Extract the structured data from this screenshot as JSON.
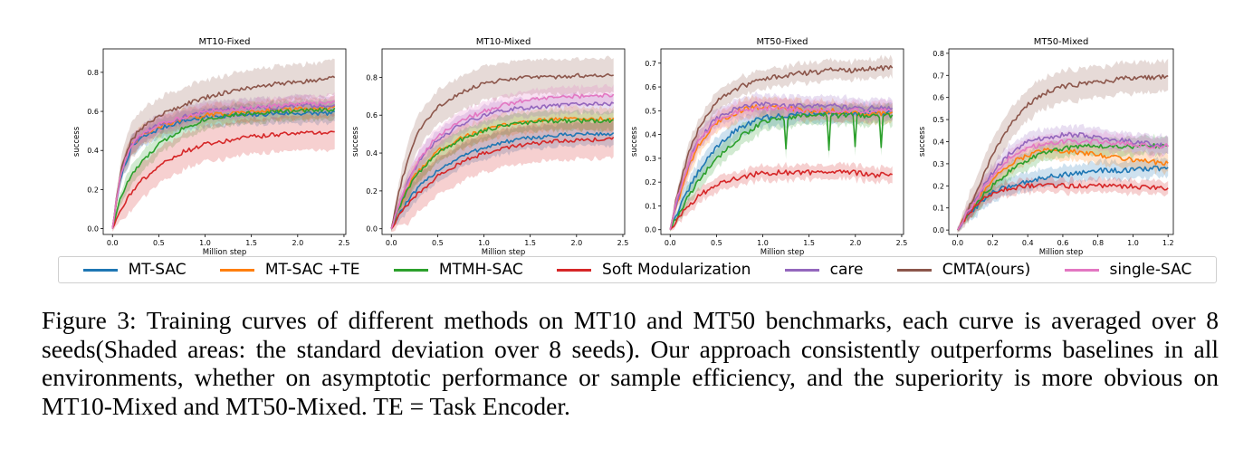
{
  "figure": {
    "caption_label": "Figure 3:",
    "caption_text": "Training curves of different methods on MT10 and MT50 benchmarks, each curve is averaged over 8 seeds(Shaded areas: the standard deviation over 8 seeds). Our approach consistently outperforms baselines in all environments, whether on asymptotic performance or sample efficiency, and the superiority is more obvious on MT10-Mixed and MT50-Mixed. TE = Task Encoder."
  },
  "legend": [
    {
      "name": "MT-SAC",
      "color": "#1f77b4"
    },
    {
      "name": "MT-SAC +TE",
      "color": "#ff7f0e"
    },
    {
      "name": "MTMH-SAC",
      "color": "#2ca02c"
    },
    {
      "name": "Soft Modularization",
      "color": "#d62728"
    },
    {
      "name": "care",
      "color": "#9467bd"
    },
    {
      "name": "CMTA(ours)",
      "color": "#8c564b"
    },
    {
      "name": "single-SAC",
      "color": "#e377c2"
    }
  ],
  "chart_data": [
    {
      "type": "line",
      "title": "MT10-Fixed",
      "xlabel": "Million step",
      "ylabel": "success",
      "xlim": [
        -0.1,
        2.52
      ],
      "ylim": [
        -0.03,
        0.92
      ],
      "xticks": [
        "0.0",
        "0.5",
        "1.0",
        "1.5",
        "2.0",
        "2.5"
      ],
      "yticks": [
        "0.0",
        "0.2",
        "0.4",
        "0.6",
        "0.8"
      ],
      "grid": false,
      "x": [
        0.0,
        0.05,
        0.1,
        0.2,
        0.3,
        0.5,
        0.75,
        1.0,
        1.25,
        1.5,
        1.75,
        2.0,
        2.2,
        2.4
      ],
      "series": [
        {
          "name": "MT-SAC",
          "values": [
            0.0,
            0.15,
            0.28,
            0.41,
            0.46,
            0.51,
            0.55,
            0.57,
            0.58,
            0.58,
            0.59,
            0.59,
            0.59,
            0.59
          ],
          "std": 0.05
        },
        {
          "name": "MT-SAC +TE",
          "values": [
            0.0,
            0.17,
            0.3,
            0.42,
            0.47,
            0.52,
            0.56,
            0.58,
            0.59,
            0.6,
            0.61,
            0.61,
            0.61,
            0.62
          ],
          "std": 0.05
        },
        {
          "name": "MTMH-SAC",
          "values": [
            0.0,
            0.1,
            0.17,
            0.27,
            0.33,
            0.43,
            0.51,
            0.56,
            0.58,
            0.59,
            0.6,
            0.6,
            0.61,
            0.61
          ],
          "std": 0.05
        },
        {
          "name": "Soft Modularization",
          "values": [
            0.0,
            0.06,
            0.11,
            0.18,
            0.24,
            0.32,
            0.39,
            0.43,
            0.45,
            0.47,
            0.48,
            0.49,
            0.49,
            0.49
          ],
          "std": 0.09
        },
        {
          "name": "care",
          "values": [
            0.0,
            0.17,
            0.3,
            0.42,
            0.48,
            0.53,
            0.57,
            0.6,
            0.61,
            0.62,
            0.62,
            0.63,
            0.63,
            0.63
          ],
          "std": 0.05
        },
        {
          "name": "CMTA(ours)",
          "values": [
            0.0,
            0.18,
            0.32,
            0.45,
            0.51,
            0.58,
            0.63,
            0.67,
            0.7,
            0.72,
            0.74,
            0.75,
            0.76,
            0.77
          ],
          "std": 0.09
        },
        {
          "name": "single-SAC",
          "values": [
            0.0,
            0.17,
            0.3,
            0.42,
            0.48,
            0.53,
            0.57,
            0.6,
            0.61,
            0.62,
            0.63,
            0.64,
            0.64,
            0.65
          ],
          "std": 0.04
        }
      ]
    },
    {
      "type": "line",
      "title": "MT10-Mixed",
      "xlabel": "Million step",
      "ylabel": "success",
      "xlim": [
        -0.1,
        2.52
      ],
      "ylim": [
        -0.03,
        0.95
      ],
      "xticks": [
        "0.0",
        "0.5",
        "1.0",
        "1.5",
        "2.0",
        "2.5"
      ],
      "yticks": [
        "0.0",
        "0.2",
        "0.4",
        "0.6",
        "0.8"
      ],
      "grid": false,
      "x": [
        0.0,
        0.05,
        0.1,
        0.2,
        0.3,
        0.5,
        0.75,
        1.0,
        1.25,
        1.5,
        1.75,
        2.0,
        2.2,
        2.4
      ],
      "series": [
        {
          "name": "MT-SAC",
          "values": [
            0.0,
            0.05,
            0.09,
            0.16,
            0.22,
            0.31,
            0.38,
            0.43,
            0.46,
            0.48,
            0.49,
            0.5,
            0.5,
            0.5
          ],
          "std": 0.06
        },
        {
          "name": "MT-SAC +TE",
          "values": [
            0.0,
            0.07,
            0.13,
            0.24,
            0.31,
            0.41,
            0.48,
            0.52,
            0.55,
            0.57,
            0.58,
            0.58,
            0.58,
            0.58
          ],
          "std": 0.06
        },
        {
          "name": "MTMH-SAC",
          "values": [
            0.0,
            0.07,
            0.13,
            0.23,
            0.3,
            0.4,
            0.47,
            0.52,
            0.55,
            0.56,
            0.57,
            0.57,
            0.57,
            0.57
          ],
          "std": 0.05
        },
        {
          "name": "Soft Modularization",
          "values": [
            0.0,
            0.04,
            0.08,
            0.14,
            0.19,
            0.28,
            0.35,
            0.4,
            0.43,
            0.45,
            0.46,
            0.47,
            0.47,
            0.48
          ],
          "std": 0.1
        },
        {
          "name": "care",
          "values": [
            0.0,
            0.08,
            0.15,
            0.27,
            0.36,
            0.47,
            0.55,
            0.6,
            0.63,
            0.64,
            0.65,
            0.66,
            0.66,
            0.66
          ],
          "std": 0.05
        },
        {
          "name": "CMTA(ours)",
          "values": [
            0.0,
            0.12,
            0.23,
            0.4,
            0.52,
            0.64,
            0.72,
            0.77,
            0.79,
            0.8,
            0.8,
            0.81,
            0.81,
            0.81
          ],
          "std": 0.09
        },
        {
          "name": "single-SAC",
          "values": [
            0.0,
            0.08,
            0.15,
            0.27,
            0.37,
            0.49,
            0.57,
            0.62,
            0.66,
            0.68,
            0.69,
            0.7,
            0.7,
            0.71
          ],
          "std": 0.05
        }
      ]
    },
    {
      "type": "line",
      "title": "MT50-Fixed",
      "xlabel": "Million step",
      "ylabel": "success",
      "xlim": [
        -0.1,
        2.52
      ],
      "ylim": [
        -0.02,
        0.76
      ],
      "xticks": [
        "0.0",
        "0.5",
        "1.0",
        "1.5",
        "2.0",
        "2.5"
      ],
      "yticks": [
        "0.0",
        "0.1",
        "0.2",
        "0.3",
        "0.4",
        "0.5",
        "0.6",
        "0.7"
      ],
      "grid": false,
      "x": [
        0.0,
        0.05,
        0.1,
        0.2,
        0.3,
        0.5,
        0.75,
        1.0,
        1.25,
        1.5,
        1.75,
        2.0,
        2.2,
        2.4
      ],
      "series": [
        {
          "name": "MT-SAC",
          "values": [
            0.0,
            0.05,
            0.09,
            0.17,
            0.24,
            0.35,
            0.43,
            0.47,
            0.48,
            0.49,
            0.49,
            0.49,
            0.49,
            0.49
          ],
          "std": 0.04
        },
        {
          "name": "MT-SAC +TE",
          "values": [
            0.0,
            0.08,
            0.14,
            0.26,
            0.35,
            0.45,
            0.5,
            0.52,
            0.51,
            0.5,
            0.5,
            0.49,
            0.49,
            0.49
          ],
          "std": 0.04
        },
        {
          "name": "MTMH-SAC",
          "values": [
            0.0,
            0.04,
            0.07,
            0.14,
            0.2,
            0.3,
            0.39,
            0.45,
            0.47,
            0.48,
            0.48,
            0.48,
            0.48,
            0.48
          ],
          "std": 0.04
        },
        {
          "name": "Soft Modularization",
          "values": [
            0.0,
            0.03,
            0.06,
            0.1,
            0.14,
            0.19,
            0.22,
            0.24,
            0.24,
            0.24,
            0.24,
            0.24,
            0.23,
            0.23
          ],
          "std": 0.03
        },
        {
          "name": "care",
          "values": [
            0.0,
            0.09,
            0.16,
            0.28,
            0.37,
            0.47,
            0.52,
            0.53,
            0.52,
            0.52,
            0.52,
            0.51,
            0.51,
            0.51
          ],
          "std": 0.04
        },
        {
          "name": "CMTA(ours)",
          "values": [
            0.0,
            0.1,
            0.18,
            0.32,
            0.42,
            0.54,
            0.6,
            0.63,
            0.65,
            0.66,
            0.67,
            0.67,
            0.68,
            0.68
          ],
          "std": 0.04
        },
        {
          "name": "single-SAC",
          "values": [
            0.0,
            0.09,
            0.16,
            0.28,
            0.37,
            0.46,
            0.5,
            0.51,
            0.51,
            0.5,
            0.5,
            0.5,
            0.5,
            0.5
          ],
          "std": 0.04
        }
      ]
    },
    {
      "type": "line",
      "title": "MT50-Mixed",
      "xlabel": "Million step",
      "ylabel": "success",
      "xlim": [
        -0.05,
        1.23
      ],
      "ylim": [
        -0.02,
        0.82
      ],
      "xticks": [
        "0.0",
        "0.2",
        "0.4",
        "0.6",
        "0.8",
        "1.0",
        "1.2"
      ],
      "yticks": [
        "0.0",
        "0.1",
        "0.2",
        "0.3",
        "0.4",
        "0.5",
        "0.6",
        "0.7",
        "0.8"
      ],
      "grid": false,
      "x": [
        0.0,
        0.05,
        0.1,
        0.15,
        0.2,
        0.3,
        0.4,
        0.5,
        0.6,
        0.7,
        0.8,
        0.9,
        1.0,
        1.1,
        1.2
      ],
      "series": [
        {
          "name": "MT-SAC",
          "values": [
            0.0,
            0.06,
            0.1,
            0.14,
            0.17,
            0.2,
            0.22,
            0.24,
            0.25,
            0.26,
            0.27,
            0.27,
            0.27,
            0.28,
            0.28
          ],
          "std": 0.04
        },
        {
          "name": "MT-SAC +TE",
          "values": [
            0.0,
            0.07,
            0.12,
            0.18,
            0.23,
            0.3,
            0.34,
            0.36,
            0.36,
            0.35,
            0.34,
            0.33,
            0.32,
            0.31,
            0.3
          ],
          "std": 0.04
        },
        {
          "name": "MTMH-SAC",
          "values": [
            0.0,
            0.06,
            0.11,
            0.16,
            0.2,
            0.27,
            0.32,
            0.35,
            0.37,
            0.38,
            0.38,
            0.38,
            0.38,
            0.38,
            0.38
          ],
          "std": 0.04
        },
        {
          "name": "Soft Modularization",
          "values": [
            0.0,
            0.06,
            0.1,
            0.14,
            0.17,
            0.19,
            0.2,
            0.2,
            0.2,
            0.2,
            0.2,
            0.2,
            0.2,
            0.19,
            0.19
          ],
          "std": 0.03
        },
        {
          "name": "care",
          "values": [
            0.0,
            0.07,
            0.13,
            0.2,
            0.26,
            0.35,
            0.4,
            0.42,
            0.43,
            0.43,
            0.42,
            0.41,
            0.4,
            0.39,
            0.38
          ],
          "std": 0.04
        },
        {
          "name": "CMTA(ours)",
          "values": [
            0.0,
            0.08,
            0.16,
            0.25,
            0.34,
            0.48,
            0.57,
            0.62,
            0.65,
            0.66,
            0.67,
            0.68,
            0.69,
            0.69,
            0.7
          ],
          "std": 0.07
        },
        {
          "name": "single-SAC",
          "values": [
            0.0,
            0.07,
            0.13,
            0.19,
            0.25,
            0.33,
            0.37,
            0.39,
            0.4,
            0.4,
            0.4,
            0.39,
            0.39,
            0.38,
            0.38
          ],
          "std": 0.04
        }
      ]
    }
  ]
}
